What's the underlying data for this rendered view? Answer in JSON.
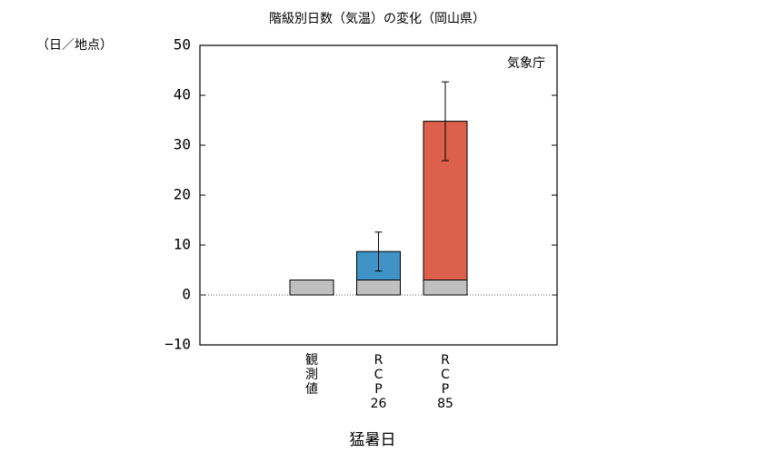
{
  "chart_data": {
    "type": "stacked-bar",
    "title": "階級別日数（気温）の変化（岡山県）",
    "y_unit_label": "（日／地点）",
    "annotation": "気象庁",
    "x_label": "猛暑日",
    "categories": [
      "観測値",
      "RCP26",
      "RCP85"
    ],
    "series": [
      {
        "colors": [
          "#c0c0c0",
          "#c0c0c0",
          "#c0c0c0"
        ],
        "values": [
          3,
          3,
          3
        ]
      },
      {
        "colors": [
          null,
          "#3f93c6",
          "#dc604c"
        ],
        "values": [
          null,
          5.7,
          31.8
        ]
      }
    ],
    "errors": [
      null,
      3.9,
      7.9
    ],
    "ylim": [
      -10,
      50
    ],
    "yticks": [
      {
        "value": -10,
        "label": "−10"
      },
      0,
      10,
      20,
      30,
      40,
      50
    ]
  }
}
